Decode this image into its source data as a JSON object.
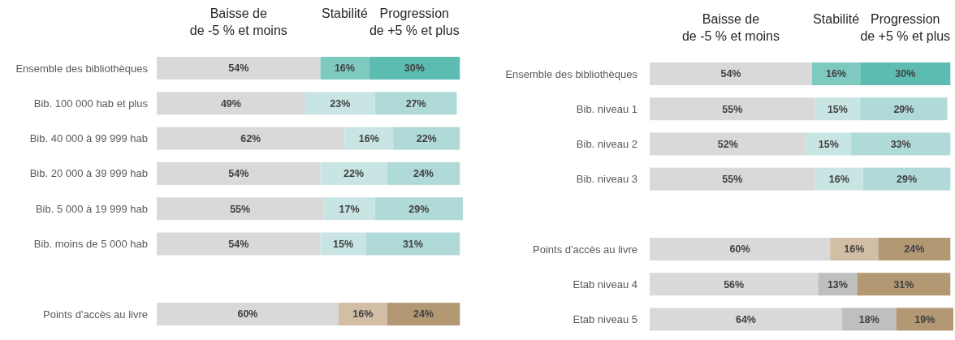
{
  "chart_data": [
    {
      "type": "bar",
      "orientation": "horizontal",
      "stacked": true,
      "legend": "top",
      "categories": [
        "Ensemble des bibliothèques",
        "Bib. 100 000 hab et plus",
        "Bib. 40 000 à 99 999 hab",
        "Bib. 20 000 à 39 999 hab",
        "Bib. 5 000 à 19 999 hab",
        "Bib. moins de 5 000 hab",
        null,
        "Points d'accès au livre"
      ],
      "series": [
        {
          "name": "Baisse de\nde -5 % et moins",
          "values": [
            54,
            49,
            62,
            54,
            55,
            54,
            null,
            60
          ],
          "value_labels": [
            "54%",
            "49%",
            "62%",
            "54%",
            "55%",
            "54%",
            null,
            "60%"
          ],
          "colors": [
            "#d9d9d9",
            "#d9d9d9",
            "#d9d9d9",
            "#d9d9d9",
            "#d9d9d9",
            "#d9d9d9",
            null,
            "#d9d9d9"
          ]
        },
        {
          "name": "Stabilité",
          "values": [
            16,
            23,
            16,
            22,
            17,
            15,
            null,
            16
          ],
          "value_labels": [
            "16%",
            "23%",
            "16%",
            "22%",
            "17%",
            "15%",
            null,
            "16%"
          ],
          "colors": [
            "#7fcac0",
            "#c9e5e3",
            "#c9e5e3",
            "#c9e5e3",
            "#c9e5e3",
            "#c9e5e3",
            null,
            "#d2bea5"
          ]
        },
        {
          "name": "Progression\nde +5 % et plus",
          "values": [
            30,
            27,
            22,
            24,
            29,
            31,
            null,
            24
          ],
          "value_labels": [
            "30%",
            "27%",
            "22%",
            "24%",
            "29%",
            "31%",
            null,
            "24%"
          ],
          "colors": [
            "#5dbcb2",
            "#b0dad7",
            "#b0dad7",
            "#b0dad7",
            "#b0dad7",
            "#b0dad7",
            null,
            "#b39874"
          ]
        }
      ]
    },
    {
      "type": "bar",
      "orientation": "horizontal",
      "stacked": true,
      "legend": "top",
      "categories": [
        "Ensemble des bibliothèques",
        "Bib. niveau 1",
        "Bib. niveau 2",
        "Bib. niveau 3",
        null,
        "Points d'accès au livre",
        "Etab niveau 4",
        "Etab niveau 5"
      ],
      "series": [
        {
          "name": "Baisse de\nde -5 % et moins",
          "values": [
            54,
            55,
            52,
            55,
            null,
            60,
            56,
            64
          ],
          "value_labels": [
            "54%",
            "55%",
            "52%",
            "55%",
            null,
            "60%",
            "56%",
            "64%"
          ],
          "colors": [
            "#d9d9d9",
            "#d9d9d9",
            "#d9d9d9",
            "#d9d9d9",
            null,
            "#d9d9d9",
            "#d9d9d9",
            "#d9d9d9"
          ]
        },
        {
          "name": "Stabilité",
          "values": [
            16,
            15,
            15,
            16,
            null,
            16,
            13,
            18
          ],
          "value_labels": [
            "16%",
            "15%",
            "15%",
            "16%",
            null,
            "16%",
            "13%",
            "18%"
          ],
          "colors": [
            "#7fcac0",
            "#c9e5e3",
            "#c9e5e3",
            "#c9e5e3",
            null,
            "#d2bea5",
            "#bfbfbf",
            "#bfbfbf"
          ]
        },
        {
          "name": "Progression\nde +5 % et plus",
          "values": [
            30,
            29,
            33,
            29,
            null,
            24,
            31,
            19
          ],
          "value_labels": [
            "30%",
            "29%",
            "33%",
            "29%",
            null,
            "24%",
            "31%",
            "19%"
          ],
          "colors": [
            "#5dbcb2",
            "#b0dad7",
            "#b0dad7",
            "#b0dad7",
            null,
            "#b39874",
            "#b39874",
            "#b39874"
          ]
        }
      ]
    }
  ]
}
